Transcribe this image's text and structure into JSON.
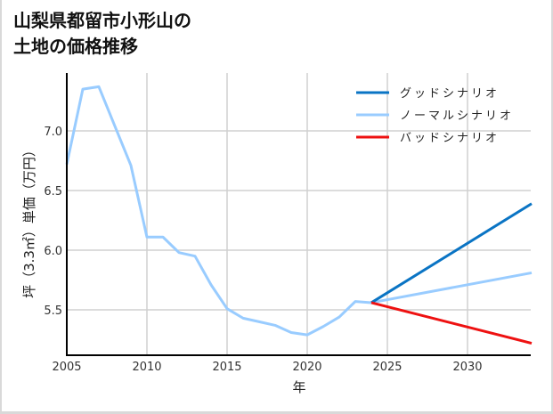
{
  "title_lines": [
    "山梨県都留市小形山の",
    "土地の価格推移"
  ],
  "chart_data": {
    "type": "line",
    "title": "山梨県都留市小形山の土地の価格推移",
    "xlabel": "年",
    "ylabel": "坪（3.3㎡）単価（万円）",
    "xlim": [
      2005,
      2034
    ],
    "ylim": [
      5.15,
      7.5
    ],
    "xticks": [
      2005,
      2010,
      2015,
      2020,
      2025,
      2030
    ],
    "yticks": [
      5.5,
      6.0,
      6.5,
      7.0
    ],
    "ytick_labels": [
      "5.5",
      "6.0",
      "6.5",
      "7.0"
    ],
    "grid": true,
    "legend_position": "upper right",
    "series": [
      {
        "name": "グッドシナリオ",
        "color": "#0a74c4",
        "x": [
          2024,
          2034
        ],
        "values": [
          5.56,
          6.39
        ]
      },
      {
        "name": "ノーマルシナリオ",
        "color": "#99ccff",
        "x": [
          2005,
          2006,
          2007,
          2008,
          2009,
          2010,
          2011,
          2012,
          2013,
          2014,
          2015,
          2016,
          2017,
          2018,
          2019,
          2020,
          2021,
          2022,
          2023,
          2024,
          2034
        ],
        "values": [
          6.72,
          7.35,
          7.37,
          7.04,
          6.71,
          6.11,
          6.11,
          5.98,
          5.95,
          5.71,
          5.51,
          5.43,
          5.4,
          5.37,
          5.31,
          5.29,
          5.36,
          5.44,
          5.57,
          5.56,
          5.81
        ]
      },
      {
        "name": "バッドシナリオ",
        "color": "#ee1111",
        "x": [
          2024,
          2034
        ],
        "values": [
          5.56,
          5.22
        ]
      }
    ]
  }
}
